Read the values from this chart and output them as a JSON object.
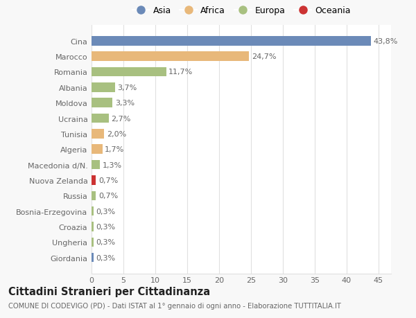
{
  "categories": [
    "Giordania",
    "Ungheria",
    "Croazia",
    "Bosnia-Erzegovina",
    "Russia",
    "Nuova Zelanda",
    "Macedonia d/N.",
    "Algeria",
    "Tunisia",
    "Ucraina",
    "Moldova",
    "Albania",
    "Romania",
    "Marocco",
    "Cina"
  ],
  "values": [
    0.3,
    0.3,
    0.3,
    0.3,
    0.7,
    0.7,
    1.3,
    1.7,
    2.0,
    2.7,
    3.3,
    3.7,
    11.7,
    24.7,
    43.8
  ],
  "labels": [
    "0,3%",
    "0,3%",
    "0,3%",
    "0,3%",
    "0,7%",
    "0,7%",
    "1,3%",
    "1,7%",
    "2,0%",
    "2,7%",
    "3,3%",
    "3,7%",
    "11,7%",
    "24,7%",
    "43,8%"
  ],
  "colors": [
    "#6b8ab8",
    "#a8c080",
    "#a8c080",
    "#a8c080",
    "#a8c080",
    "#cc3333",
    "#a8c080",
    "#e8b87a",
    "#e8b87a",
    "#a8c080",
    "#a8c080",
    "#a8c080",
    "#a8c080",
    "#e8b87a",
    "#6b8ab8"
  ],
  "continent_colors": {
    "Asia": "#6b8ab8",
    "Africa": "#e8b87a",
    "Europa": "#a8c080",
    "Oceania": "#cc3333"
  },
  "legend_labels": [
    "Asia",
    "Africa",
    "Europa",
    "Oceania"
  ],
  "title": "Cittadini Stranieri per Cittadinanza",
  "subtitle": "COMUNE DI CODEVIGO (PD) - Dati ISTAT al 1° gennaio di ogni anno - Elaborazione TUTTITALIA.IT",
  "xlim": [
    0,
    47
  ],
  "xticks": [
    0,
    5,
    10,
    15,
    20,
    25,
    30,
    35,
    40,
    45
  ],
  "bar_height": 0.6,
  "background_color": "#f8f8f8",
  "axes_background": "#ffffff",
  "grid_color": "#e0e0e0",
  "text_color": "#666666",
  "label_fontsize": 8.0,
  "tick_fontsize": 8.0,
  "title_fontsize": 10.5,
  "subtitle_fontsize": 7.2
}
